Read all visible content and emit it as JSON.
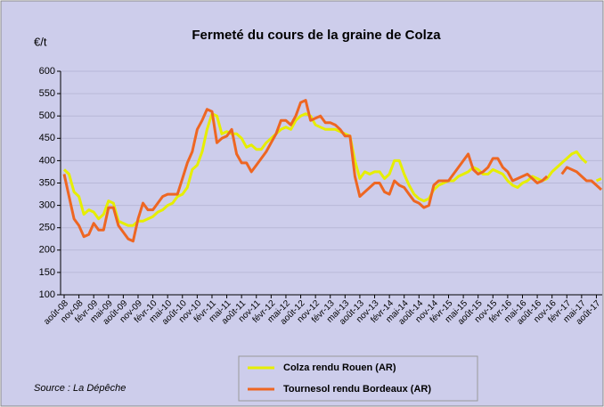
{
  "chart_data": {
    "type": "line",
    "title": "Fermeté du cours de la graine de Colza",
    "y_label": "€/t",
    "source": "Source : La Dépêche",
    "ylim": [
      100,
      600
    ],
    "yticks": [
      100,
      150,
      200,
      250,
      300,
      350,
      400,
      450,
      500,
      550,
      600
    ],
    "grid": true,
    "categories": [
      "août-08",
      null,
      null,
      "nov-08",
      null,
      null,
      "févr-09",
      null,
      null,
      "mai-09",
      null,
      null,
      "août-09",
      null,
      null,
      "nov-09",
      null,
      null,
      "févr-10",
      null,
      null,
      "mai-10",
      null,
      null,
      "août-10",
      null,
      null,
      "nov-10",
      null,
      null,
      "févr-11",
      null,
      null,
      "mai-11",
      null,
      null,
      "août-11",
      null,
      null,
      "nov-11",
      null,
      null,
      "févr-12",
      null,
      null,
      "mai-12",
      null,
      null,
      "août-12",
      null,
      null,
      "nov-12",
      null,
      null,
      "févr-13",
      null,
      null,
      "mai-13",
      null,
      null,
      "août-13",
      null,
      null,
      "nov-13",
      null,
      null,
      "févr-14",
      null,
      null,
      "mai-14",
      null,
      null,
      "août-14",
      null,
      null,
      "nov-14",
      null,
      null,
      "févr-15",
      null,
      null,
      "mai-15",
      null,
      null,
      "août-15",
      null,
      null,
      "nov-15",
      null,
      null,
      "févr-16",
      null,
      null,
      "mai-16",
      null,
      null,
      "août-16",
      null,
      null,
      "nov-16",
      null,
      null,
      "févr-17",
      null,
      null,
      "mai-17",
      null,
      null,
      "août-17",
      null
    ],
    "series": [
      {
        "name": "Colza rendu Rouen (AR)",
        "color": "#e6ee00",
        "values": [
          380,
          370,
          330,
          320,
          280,
          290,
          285,
          270,
          280,
          310,
          305,
          265,
          260,
          255,
          255,
          265,
          265,
          270,
          275,
          285,
          290,
          300,
          305,
          320,
          325,
          340,
          380,
          390,
          420,
          470,
          505,
          500,
          460,
          465,
          460,
          460,
          450,
          430,
          435,
          425,
          425,
          440,
          450,
          460,
          470,
          475,
          470,
          490,
          500,
          505,
          500,
          480,
          475,
          470,
          470,
          470,
          465,
          460,
          455,
          400,
          360,
          375,
          370,
          375,
          375,
          360,
          370,
          400,
          400,
          370,
          345,
          325,
          315,
          310,
          315,
          335,
          345,
          350,
          355,
          355,
          365,
          370,
          375,
          385,
          380,
          370,
          370,
          380,
          375,
          370,
          355,
          345,
          340,
          350,
          355,
          365,
          360,
          355,
          360,
          375,
          385,
          395,
          405,
          415,
          420,
          405,
          395,
          null,
          355,
          360
        ]
      },
      {
        "name": "Tournesol rendu Bordeaux (AR)",
        "color": "#ee6622",
        "values": [
          370,
          320,
          270,
          255,
          230,
          235,
          260,
          245,
          245,
          295,
          295,
          255,
          240,
          225,
          220,
          270,
          305,
          290,
          290,
          305,
          320,
          325,
          325,
          325,
          360,
          395,
          420,
          470,
          490,
          515,
          510,
          440,
          450,
          455,
          470,
          415,
          395,
          395,
          375,
          390,
          405,
          420,
          440,
          460,
          490,
          490,
          480,
          500,
          530,
          535,
          490,
          495,
          500,
          485,
          485,
          480,
          470,
          455,
          455,
          365,
          320,
          330,
          340,
          350,
          350,
          330,
          325,
          355,
          345,
          340,
          325,
          310,
          305,
          295,
          300,
          345,
          355,
          355,
          355,
          370,
          385,
          400,
          415,
          380,
          370,
          375,
          385,
          405,
          405,
          385,
          375,
          355,
          360,
          365,
          370,
          360,
          350,
          355,
          365,
          null,
          null,
          370,
          385,
          380,
          375,
          365,
          355,
          355,
          345,
          335
        ]
      }
    ]
  }
}
